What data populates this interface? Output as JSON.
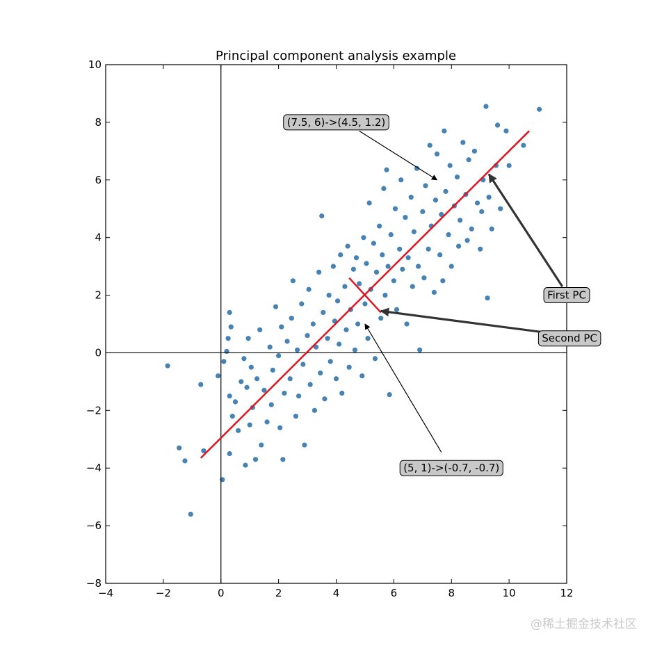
{
  "chart_data": {
    "type": "scatter",
    "title": "Principal component analysis example",
    "xlabel": "",
    "ylabel": "",
    "xlim": [
      -4,
      12
    ],
    "ylim": [
      -8,
      10
    ],
    "xticks": [
      -4,
      -2,
      0,
      2,
      4,
      6,
      8,
      10,
      12
    ],
    "yticks": [
      -8,
      -6,
      -4,
      -2,
      0,
      2,
      4,
      6,
      8,
      10
    ],
    "xtick_labels": [
      "−4",
      "−2",
      "0",
      "2",
      "4",
      "6",
      "8",
      "10",
      "12"
    ],
    "ytick_labels": [
      "−8",
      "−6",
      "−4",
      "−2",
      "0",
      "2",
      "4",
      "6",
      "8",
      "10"
    ],
    "grid": false,
    "point_color": "#4682b4",
    "pc_color": "#e0141e",
    "mean": [
      5,
      2
    ],
    "first_pc_line": {
      "x": [
        -0.7,
        10.7
      ],
      "y": [
        -3.65,
        7.7
      ]
    },
    "second_pc_line": {
      "x": [
        4.45,
        5.55
      ],
      "y": [
        2.6,
        1.4
      ]
    },
    "sample_points": [
      [
        -1.85,
        -0.45
      ],
      [
        -1.45,
        -3.3
      ],
      [
        -1.25,
        -3.75
      ],
      [
        -1.05,
        -5.6
      ],
      [
        -0.7,
        -1.1
      ],
      [
        -0.6,
        -3.4
      ],
      [
        -0.1,
        -0.8
      ],
      [
        0.05,
        -4.4
      ],
      [
        0.1,
        -0.3
      ],
      [
        0.2,
        0.05
      ],
      [
        0.25,
        0.5
      ],
      [
        0.3,
        1.4
      ],
      [
        0.3,
        -1.5
      ],
      [
        0.3,
        -3.5
      ],
      [
        0.35,
        0.9
      ],
      [
        0.4,
        -2.2
      ],
      [
        0.5,
        -1.7
      ],
      [
        0.6,
        -2.7
      ],
      [
        0.7,
        -1.0
      ],
      [
        0.8,
        -0.2
      ],
      [
        0.85,
        -3.9
      ],
      [
        0.9,
        -1.2
      ],
      [
        0.95,
        0.5
      ],
      [
        1.0,
        -2.5
      ],
      [
        1.05,
        -0.5
      ],
      [
        1.1,
        -1.9
      ],
      [
        1.2,
        -3.7
      ],
      [
        1.25,
        -0.9
      ],
      [
        1.35,
        0.8
      ],
      [
        1.4,
        -3.2
      ],
      [
        1.5,
        -1.3
      ],
      [
        1.6,
        -2.4
      ],
      [
        1.7,
        0.2
      ],
      [
        1.75,
        -1.8
      ],
      [
        1.8,
        -0.6
      ],
      [
        1.9,
        1.6
      ],
      [
        2.0,
        -0.1
      ],
      [
        2.05,
        -2.6
      ],
      [
        2.1,
        0.9
      ],
      [
        2.15,
        -3.7
      ],
      [
        2.2,
        -1.4
      ],
      [
        2.3,
        0.4
      ],
      [
        2.4,
        -0.9
      ],
      [
        2.45,
        1.2
      ],
      [
        2.5,
        2.5
      ],
      [
        2.6,
        -2.2
      ],
      [
        2.65,
        0.1
      ],
      [
        2.7,
        -1.5
      ],
      [
        2.8,
        1.7
      ],
      [
        2.85,
        -0.4
      ],
      [
        2.9,
        -3.2
      ],
      [
        3.0,
        0.6
      ],
      [
        3.05,
        2.2
      ],
      [
        3.1,
        -1.1
      ],
      [
        3.2,
        1.0
      ],
      [
        3.25,
        -2.0
      ],
      [
        3.3,
        0.2
      ],
      [
        3.4,
        2.8
      ],
      [
        3.45,
        -0.7
      ],
      [
        3.5,
        4.75
      ],
      [
        3.55,
        1.4
      ],
      [
        3.6,
        -1.6
      ],
      [
        3.7,
        0.5
      ],
      [
        3.75,
        2.0
      ],
      [
        3.8,
        -0.3
      ],
      [
        3.9,
        3.0
      ],
      [
        3.95,
        1.1
      ],
      [
        4.0,
        -0.9
      ],
      [
        4.05,
        1.8
      ],
      [
        4.1,
        0.3
      ],
      [
        4.15,
        3.4
      ],
      [
        4.2,
        -1.4
      ],
      [
        4.3,
        2.3
      ],
      [
        4.35,
        0.8
      ],
      [
        4.4,
        3.7
      ],
      [
        4.45,
        -0.5
      ],
      [
        4.5,
        1.5
      ],
      [
        4.6,
        2.9
      ],
      [
        4.65,
        0.1
      ],
      [
        4.7,
        3.3
      ],
      [
        4.75,
        1.0
      ],
      [
        4.8,
        2.4
      ],
      [
        4.9,
        -0.8
      ],
      [
        4.95,
        4.0
      ],
      [
        5.0,
        1.7
      ],
      [
        5.05,
        3.1
      ],
      [
        5.1,
        0.5
      ],
      [
        5.15,
        5.2
      ],
      [
        5.2,
        2.2
      ],
      [
        5.3,
        3.8
      ],
      [
        5.35,
        -0.2
      ],
      [
        5.4,
        2.8
      ],
      [
        5.5,
        4.4
      ],
      [
        5.55,
        1.2
      ],
      [
        5.6,
        3.4
      ],
      [
        5.65,
        5.7
      ],
      [
        5.7,
        2.0
      ],
      [
        5.75,
        6.35
      ],
      [
        5.8,
        3.0
      ],
      [
        5.85,
        -1.45
      ],
      [
        5.9,
        4.1
      ],
      [
        6.0,
        2.5
      ],
      [
        6.05,
        5.0
      ],
      [
        6.1,
        1.5
      ],
      [
        6.2,
        3.6
      ],
      [
        6.25,
        6.0
      ],
      [
        6.3,
        2.9
      ],
      [
        6.4,
        4.7
      ],
      [
        6.45,
        1.0
      ],
      [
        6.5,
        3.3
      ],
      [
        6.6,
        5.4
      ],
      [
        6.65,
        2.3
      ],
      [
        6.7,
        4.2
      ],
      [
        6.8,
        6.4
      ],
      [
        6.85,
        3.0
      ],
      [
        6.9,
        0.1
      ],
      [
        7.0,
        4.9
      ],
      [
        7.05,
        2.6
      ],
      [
        7.1,
        5.8
      ],
      [
        7.2,
        3.6
      ],
      [
        7.25,
        7.2
      ],
      [
        7.3,
        4.4
      ],
      [
        7.4,
        2.1
      ],
      [
        7.45,
        5.3
      ],
      [
        7.5,
        6.9
      ],
      [
        7.6,
        3.4
      ],
      [
        7.65,
        4.8
      ],
      [
        7.7,
        2.5
      ],
      [
        7.75,
        7.7
      ],
      [
        7.8,
        5.6
      ],
      [
        7.9,
        4.1
      ],
      [
        7.95,
        6.5
      ],
      [
        8.0,
        3.0
      ],
      [
        8.1,
        5.1
      ],
      [
        8.2,
        6.1
      ],
      [
        8.25,
        3.7
      ],
      [
        8.3,
        4.6
      ],
      [
        8.4,
        7.3
      ],
      [
        8.5,
        5.5
      ],
      [
        8.55,
        3.9
      ],
      [
        8.6,
        6.7
      ],
      [
        8.7,
        4.3
      ],
      [
        8.8,
        7.0
      ],
      [
        8.9,
        5.2
      ],
      [
        9.0,
        3.6
      ],
      [
        9.05,
        4.9
      ],
      [
        9.1,
        6.0
      ],
      [
        9.2,
        8.55
      ],
      [
        9.25,
        1.9
      ],
      [
        9.3,
        5.4
      ],
      [
        9.4,
        4.3
      ],
      [
        9.55,
        6.5
      ],
      [
        9.6,
        7.9
      ],
      [
        9.7,
        5.0
      ],
      [
        9.9,
        7.7
      ],
      [
        10.0,
        6.5
      ],
      [
        10.5,
        7.2
      ],
      [
        11.05,
        8.45
      ]
    ],
    "annotations": [
      {
        "text": "(7.5, 6)->(4.5, 1.2)",
        "text_xy": [
          4.0,
          8.0
        ],
        "target": [
          7.5,
          6.0
        ],
        "tail": [
          4.8,
          7.7
        ],
        "arrow": "thin"
      },
      {
        "text": "First PC",
        "text_xy": [
          12.0,
          2.0
        ],
        "target": [
          9.3,
          6.2
        ],
        "tail": [
          11.85,
          2.3
        ],
        "arrow": "thick"
      },
      {
        "text": "Second PC",
        "text_xy": [
          12.1,
          0.5
        ],
        "target": [
          5.55,
          1.45
        ],
        "tail": [
          11.3,
          0.7
        ],
        "arrow": "thick"
      },
      {
        "text": "(5, 1)->(-0.7, -0.7)",
        "text_xy": [
          8.0,
          -4.0
        ],
        "target": [
          5.0,
          1.0
        ],
        "tail": [
          7.65,
          -3.45
        ],
        "arrow": "thin"
      }
    ]
  },
  "watermark": "@稀土掘金技术社区"
}
